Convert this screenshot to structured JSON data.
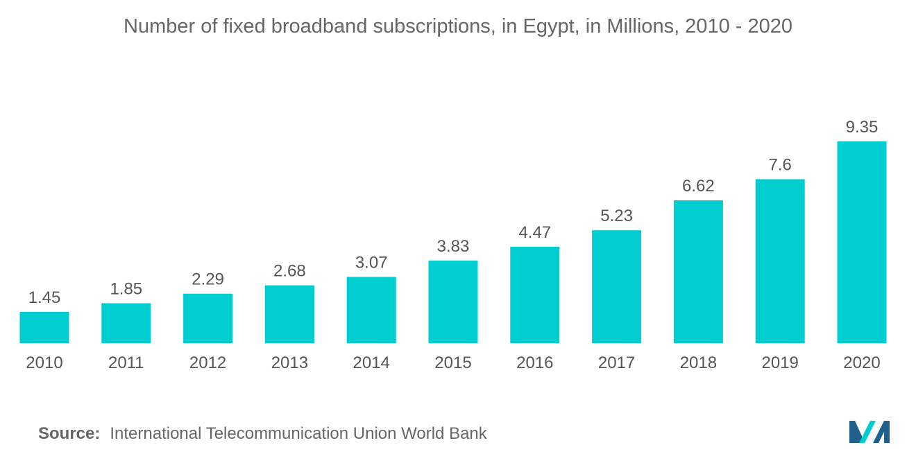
{
  "chart_data": {
    "type": "bar",
    "title": "Number of fixed broadband subscriptions, in Egypt, in Millions, 2010 - 2020",
    "categories": [
      "2010",
      "2011",
      "2012",
      "2013",
      "2014",
      "2015",
      "2016",
      "2017",
      "2018",
      "2019",
      "2020"
    ],
    "values": [
      1.45,
      1.85,
      2.29,
      2.68,
      3.07,
      3.83,
      4.47,
      5.23,
      6.62,
      7.6,
      9.35
    ],
    "value_labels": [
      "1.45",
      "1.85",
      "2.29",
      "2.68",
      "3.07",
      "3.83",
      "4.47",
      "5.23",
      "6.62",
      "7.6",
      "9.35"
    ],
    "xlabel": "",
    "ylabel": "",
    "ylim": [
      0,
      9.35
    ],
    "grid": false,
    "bar_color": "#00CDD0"
  },
  "source": {
    "label": "Source:",
    "text": "International Telecommunication Union World Bank"
  },
  "colors": {
    "logo_dark": "#1F5F8B",
    "logo_light": "#00CDD0"
  }
}
